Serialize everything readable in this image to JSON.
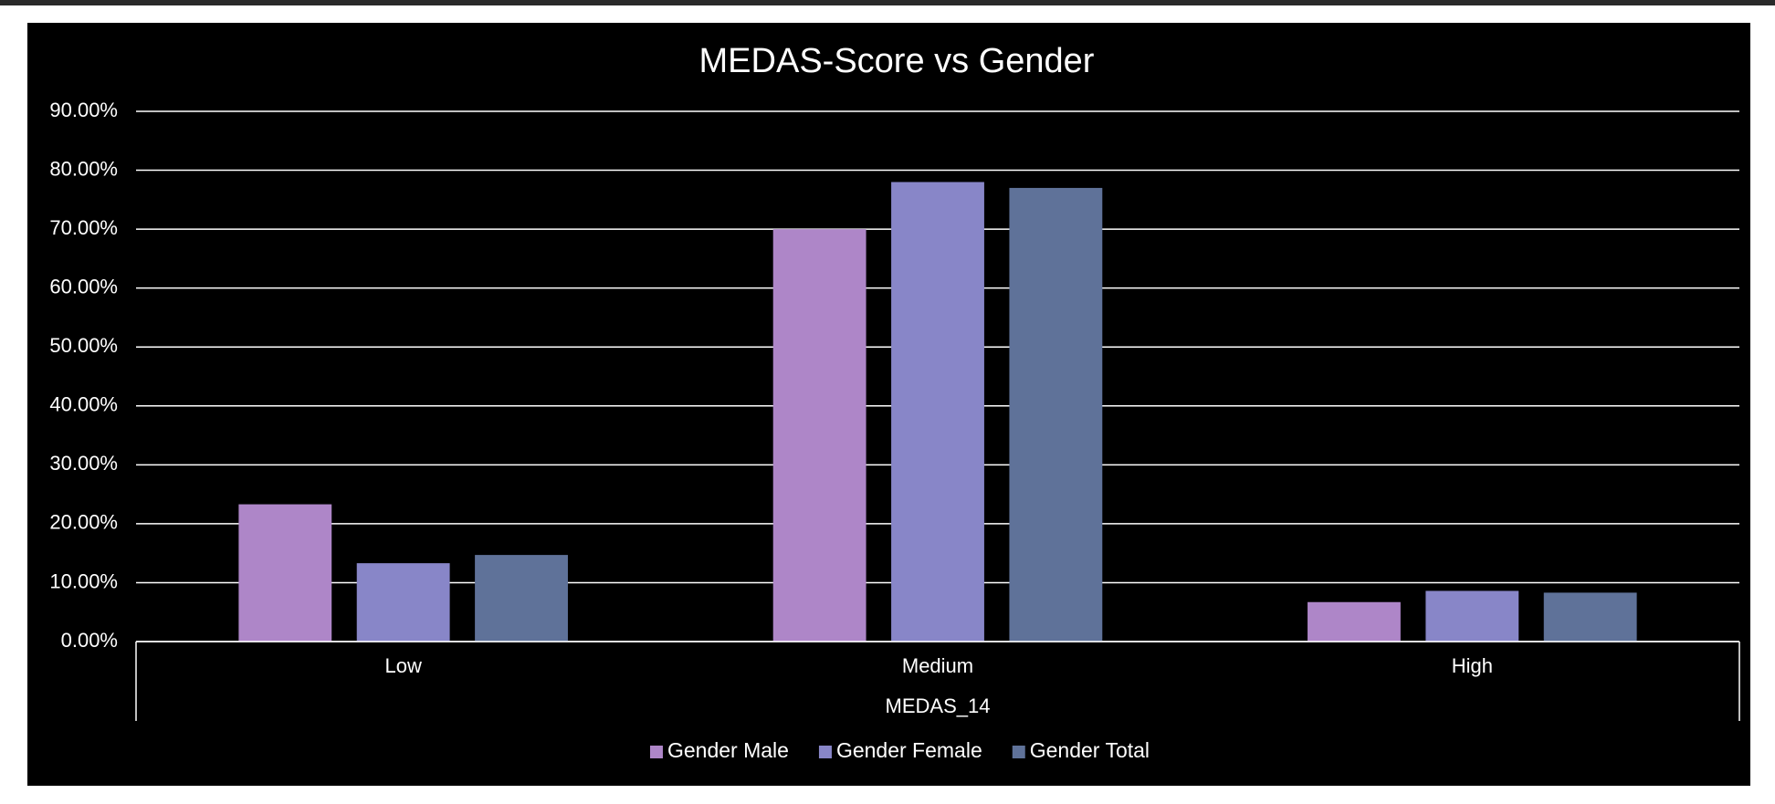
{
  "chart_data": {
    "type": "bar",
    "title": "MEDAS-Score vs Gender",
    "x_label": "MEDAS_14",
    "categories": [
      "Low",
      "Medium",
      "High"
    ],
    "series": [
      {
        "name": "Gender Male",
        "color": "#ae86c8",
        "values": [
          23.3,
          70,
          6.7
        ]
      },
      {
        "name": "Gender Female",
        "color": "#8886c8",
        "values": [
          13.3,
          78,
          8.6
        ]
      },
      {
        "name": "Gender Total",
        "color": "#5f7299",
        "values": [
          14.7,
          77,
          8.3
        ]
      }
    ],
    "ylim": [
      0,
      90
    ],
    "yticks": [
      {
        "value": 0,
        "label": "0.00%"
      },
      {
        "value": 10,
        "label": "10.00%"
      },
      {
        "value": 20,
        "label": "20.00%"
      },
      {
        "value": 30,
        "label": "30.00%"
      },
      {
        "value": 40,
        "label": "40.00%"
      },
      {
        "value": 50,
        "label": "50.00%"
      },
      {
        "value": 60,
        "label": "60.00%"
      },
      {
        "value": 70,
        "label": "70.00%"
      },
      {
        "value": 80,
        "label": "80.00%"
      },
      {
        "value": 90,
        "label": "90.00%"
      }
    ],
    "grid": true,
    "legend": "bottom"
  }
}
